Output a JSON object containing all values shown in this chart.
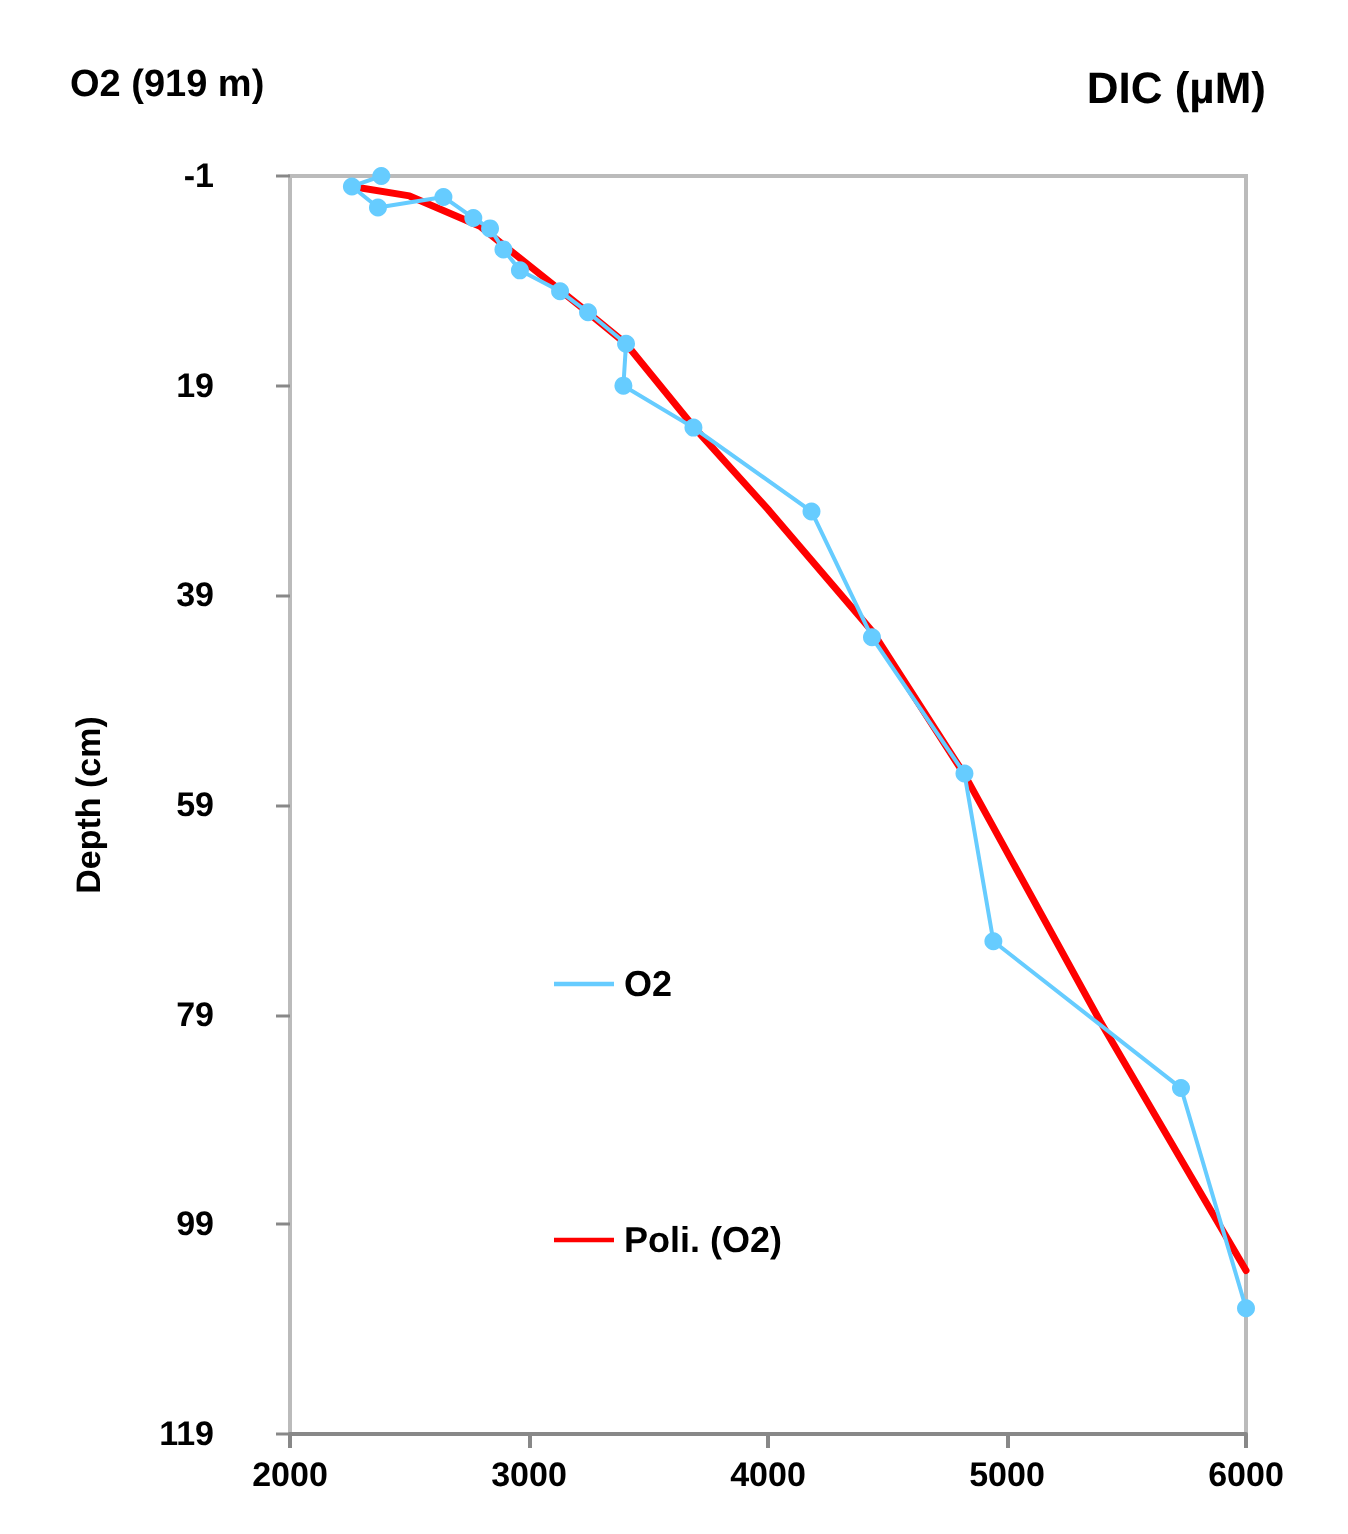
{
  "chart_data": {
    "type": "line",
    "title": "O2 (919 m)",
    "xlabel": "DIC (µM)",
    "ylabel": "Depth (cm)",
    "series": [
      {
        "name": "O2",
        "color": "#66ccff",
        "marker": "circle",
        "x": [
          2382,
          2259,
          2368,
          2642,
          2767,
          2837,
          2893,
          2962,
          3130,
          3247,
          3406,
          3395,
          3688,
          4182,
          4435,
          4822,
          4943,
          5728,
          6000
        ],
        "values": [
          -1,
          0,
          2,
          1,
          3,
          4,
          6,
          8,
          10,
          12,
          15,
          19,
          23,
          31,
          43,
          56,
          72,
          86,
          107
        ]
      },
      {
        "name": "Poli. (O2)",
        "color": "#ff0000",
        "marker": "none",
        "x": [
          2259,
          2500,
          2795,
          3213,
          3406,
          3688,
          4000,
          4435,
          4822,
          5389,
          6000
        ],
        "values": [
          0,
          0.9,
          3.8,
          11.4,
          15,
          22.9,
          30.8,
          42.4,
          56.1,
          79.6,
          103.4
        ]
      }
    ],
    "xlim": [
      2000,
      6000
    ],
    "xticks": [
      2000,
      3000,
      4000,
      5000,
      6000
    ],
    "ylim": [
      119,
      -1
    ],
    "yticks": [
      -1,
      19,
      39,
      59,
      79,
      99,
      119
    ],
    "grid": false,
    "legend": "left",
    "line_style": "solid"
  }
}
